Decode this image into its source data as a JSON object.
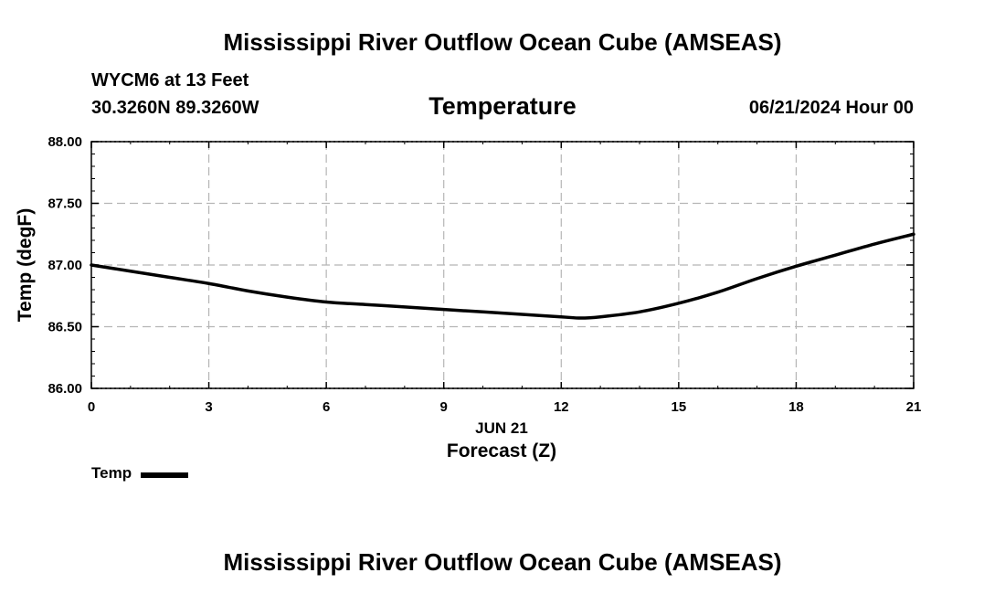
{
  "page": {
    "main_title": "Mississippi River Outflow Ocean Cube (AMSEAS)",
    "footer_title": "Mississippi River Outflow Ocean Cube (AMSEAS)",
    "station": "WYCM6 at 13 Feet",
    "coordinates": "30.3260N  89.3260W",
    "timestamp": "06/21/2024 Hour 00"
  },
  "legend": {
    "label": "Temp"
  },
  "chart_data": {
    "type": "line",
    "title": "Temperature",
    "xlabel": "Forecast (Z)",
    "xlabel_date": "JUN 21",
    "ylabel": "Temp (degF)",
    "xlim": [
      0,
      21
    ],
    "ylim": [
      86.0,
      88.0
    ],
    "xticks": [
      0,
      3,
      6,
      9,
      12,
      15,
      18,
      21
    ],
    "xtick_labels": [
      "0",
      "3",
      "6",
      "9",
      "12",
      "15",
      "18",
      "21"
    ],
    "yticks": [
      86.0,
      86.5,
      87.0,
      87.5,
      88.0
    ],
    "ytick_labels": [
      "86.00",
      "86.50",
      "87.00",
      "87.50",
      "88.00"
    ],
    "grid": true,
    "legend_position": "bottom-left",
    "series": [
      {
        "name": "Temp",
        "color": "#000000",
        "x": [
          0,
          1,
          2,
          3,
          4,
          5,
          6,
          7,
          8,
          9,
          10,
          11,
          12,
          12.5,
          13,
          14,
          15,
          16,
          17,
          18,
          19,
          20,
          21
        ],
        "values": [
          87.0,
          86.95,
          86.9,
          86.85,
          86.79,
          86.74,
          86.7,
          86.68,
          86.66,
          86.64,
          86.62,
          86.6,
          86.58,
          86.57,
          86.58,
          86.62,
          86.69,
          86.78,
          86.89,
          86.99,
          87.08,
          87.17,
          87.25
        ]
      }
    ]
  }
}
